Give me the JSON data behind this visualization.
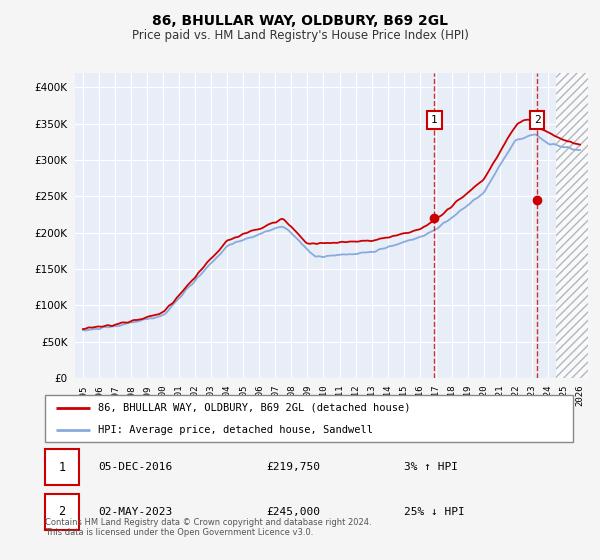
{
  "title": "86, BHULLAR WAY, OLDBURY, B69 2GL",
  "subtitle": "Price paid vs. HM Land Registry's House Price Index (HPI)",
  "legend_line1": "86, BHULLAR WAY, OLDBURY, B69 2GL (detached house)",
  "legend_line2": "HPI: Average price, detached house, Sandwell",
  "annotation1_date": "05-DEC-2016",
  "annotation1_price": "£219,750",
  "annotation1_hpi": "3% ↑ HPI",
  "annotation2_date": "02-MAY-2023",
  "annotation2_price": "£245,000",
  "annotation2_hpi": "25% ↓ HPI",
  "footer": "Contains HM Land Registry data © Crown copyright and database right 2024.\nThis data is licensed under the Open Government Licence v3.0.",
  "hpi_color": "#88aadd",
  "price_color": "#cc0000",
  "vline_color": "#cc0000",
  "plot_bg": "#e8eef8",
  "fig_bg": "#f5f5f5",
  "sale1_x": 2016.92,
  "sale1_y": 219750,
  "sale2_x": 2023.33,
  "sale2_y": 245000,
  "ylim": [
    0,
    420000
  ],
  "xlim": [
    1994.5,
    2026.5
  ],
  "yticks": [
    0,
    50000,
    100000,
    150000,
    200000,
    250000,
    300000,
    350000,
    400000
  ],
  "xticks": [
    1995,
    1996,
    1997,
    1998,
    1999,
    2000,
    2001,
    2002,
    2003,
    2004,
    2005,
    2006,
    2007,
    2008,
    2009,
    2010,
    2011,
    2012,
    2013,
    2014,
    2015,
    2016,
    2017,
    2018,
    2019,
    2020,
    2021,
    2022,
    2023,
    2024,
    2025,
    2026
  ]
}
